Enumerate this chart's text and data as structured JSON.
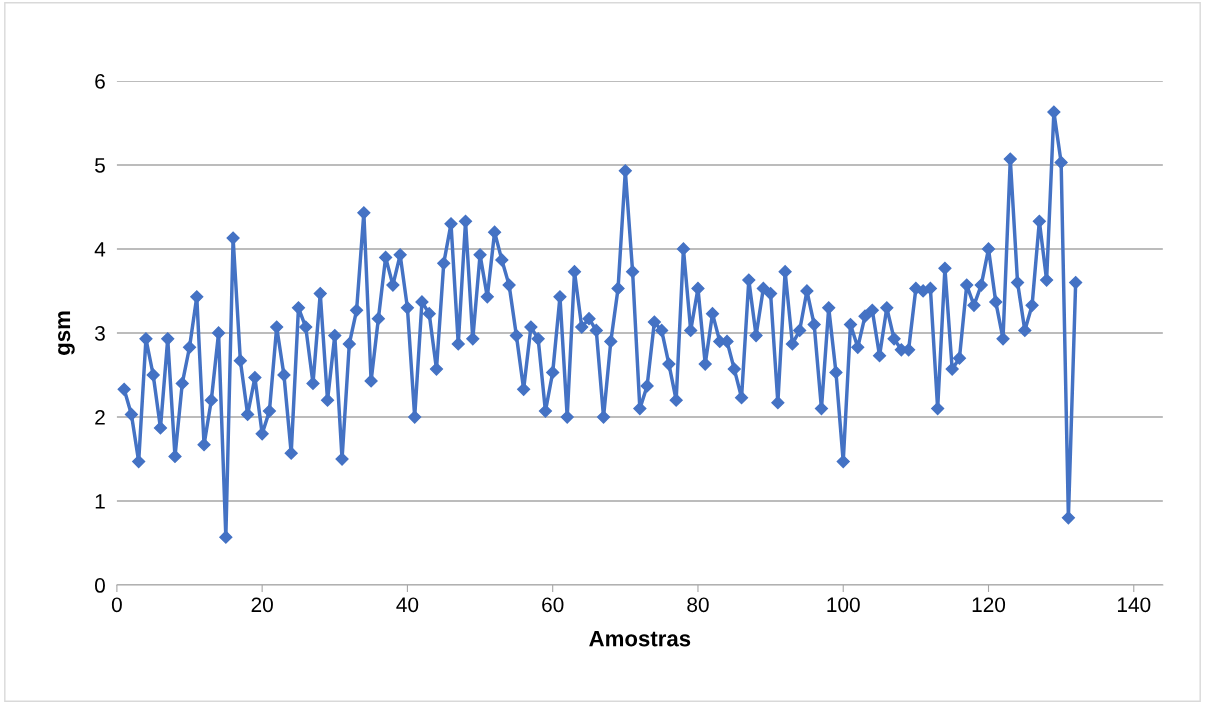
{
  "chart_data": {
    "type": "line",
    "xlabel": "Amostras",
    "ylabel": "gsm",
    "x": [
      1,
      2,
      3,
      4,
      5,
      6,
      7,
      8,
      9,
      10,
      11,
      12,
      13,
      14,
      15,
      16,
      17,
      18,
      19,
      20,
      21,
      22,
      23,
      24,
      25,
      26,
      27,
      28,
      29,
      30,
      31,
      32,
      33,
      34,
      35,
      36,
      37,
      38,
      39,
      40,
      41,
      42,
      43,
      44,
      45,
      46,
      47,
      48,
      49,
      50,
      51,
      52,
      53,
      54,
      55,
      56,
      57,
      58,
      59,
      60,
      61,
      62,
      63,
      64,
      65,
      66,
      67,
      68,
      69,
      70,
      71,
      72,
      73,
      74,
      75,
      76,
      77,
      78,
      79,
      80,
      81,
      82,
      83,
      84,
      85,
      86,
      87,
      88,
      89,
      90,
      91,
      92,
      93,
      94,
      95,
      96,
      97,
      98,
      99,
      100,
      101,
      102,
      103,
      104,
      105,
      106,
      107,
      108,
      109,
      110,
      111,
      112,
      113,
      114,
      115,
      116,
      117,
      118,
      119,
      120,
      121,
      122,
      123,
      124,
      125,
      126,
      127,
      128,
      129,
      130,
      131,
      132
    ],
    "series": [
      {
        "color": "#4472c4",
        "values": [
          2.33,
          2.03,
          1.47,
          2.93,
          2.5,
          1.87,
          2.93,
          1.53,
          2.4,
          2.83,
          3.43,
          1.67,
          2.2,
          3.0,
          0.57,
          4.13,
          2.67,
          2.03,
          2.47,
          1.8,
          2.07,
          3.07,
          2.5,
          1.57,
          3.3,
          3.07,
          2.4,
          3.47,
          2.2,
          2.97,
          1.5,
          2.87,
          3.27,
          4.43,
          2.43,
          3.17,
          3.9,
          3.57,
          3.93,
          3.3,
          2.0,
          3.37,
          3.23,
          2.57,
          3.83,
          4.3,
          2.87,
          4.33,
          2.93,
          3.93,
          3.43,
          4.2,
          3.87,
          3.57,
          2.97,
          2.33,
          3.07,
          2.93,
          2.07,
          2.53,
          3.43,
          2.0,
          3.73,
          3.07,
          3.17,
          3.03,
          2.0,
          2.9,
          3.53,
          4.93,
          3.73,
          2.1,
          2.37,
          3.13,
          3.03,
          2.63,
          2.2,
          4.0,
          3.03,
          3.53,
          2.63,
          3.23,
          2.9,
          2.9,
          2.57,
          2.23,
          3.63,
          2.97,
          3.53,
          3.47,
          2.17,
          3.73,
          2.87,
          3.03,
          3.5,
          3.1,
          2.1,
          3.3,
          2.53,
          1.47,
          3.1,
          2.83,
          3.2,
          3.27,
          2.73,
          3.3,
          2.93,
          2.8,
          2.8,
          3.53,
          3.5,
          3.53,
          2.1,
          3.77,
          2.57,
          2.7,
          3.57,
          3.33,
          3.57,
          4.0,
          3.37,
          2.93,
          5.07,
          3.6,
          3.03,
          3.33,
          4.33,
          3.63,
          5.63,
          5.03,
          0.8,
          3.6
        ]
      }
    ],
    "xlim": [
      0,
      144
    ],
    "xticks": [
      0,
      20,
      40,
      60,
      80,
      100,
      120,
      140
    ],
    "ylim": [
      0,
      6
    ],
    "yticks": [
      0,
      1,
      2,
      3,
      4,
      5,
      6
    ],
    "grid": "y",
    "marker": "diamond",
    "line_style": "solid",
    "legend": false
  }
}
